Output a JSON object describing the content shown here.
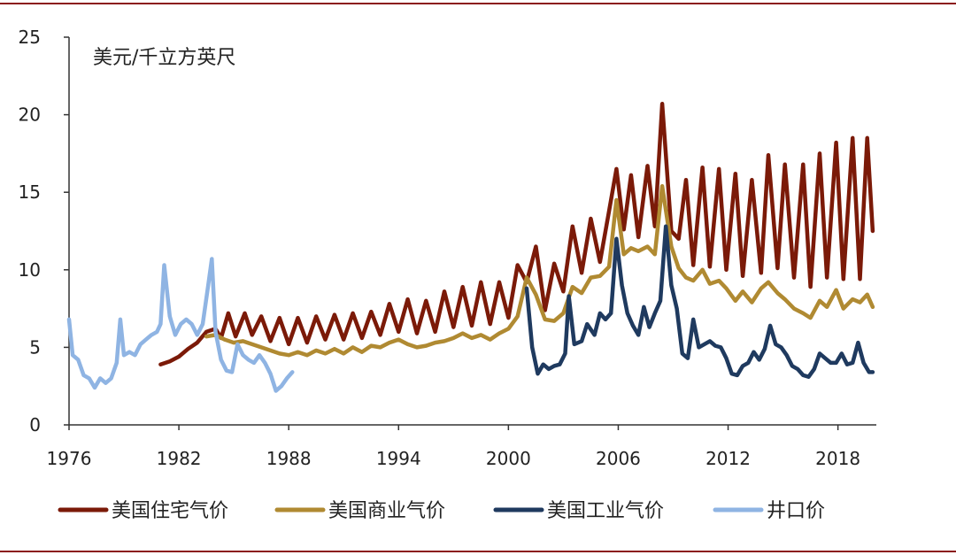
{
  "chart_data": {
    "type": "line",
    "unit_label": "美元/千立方英尺",
    "ylim": [
      0,
      25
    ],
    "xlim": [
      1976,
      2020
    ],
    "y_ticks": [
      0,
      5,
      10,
      15,
      20,
      25
    ],
    "x_ticks": [
      1976,
      1982,
      1988,
      1994,
      2000,
      2006,
      2012,
      2018
    ],
    "legend_position": "bottom",
    "series": [
      {
        "name": "美国住宅气价",
        "color": "#7b1a08",
        "points": [
          [
            1981.0,
            3.9
          ],
          [
            1981.5,
            4.1
          ],
          [
            1982.0,
            4.4
          ],
          [
            1982.5,
            4.9
          ],
          [
            1983.0,
            5.3
          ],
          [
            1983.5,
            6.0
          ],
          [
            1984.0,
            6.2
          ],
          [
            1984.3,
            5.6
          ],
          [
            1984.7,
            7.2
          ],
          [
            1985.1,
            5.7
          ],
          [
            1985.6,
            7.2
          ],
          [
            1986.0,
            5.8
          ],
          [
            1986.5,
            7.0
          ],
          [
            1987.0,
            5.4
          ],
          [
            1987.5,
            6.9
          ],
          [
            1988.0,
            5.2
          ],
          [
            1988.5,
            6.9
          ],
          [
            1989.0,
            5.3
          ],
          [
            1989.5,
            7.0
          ],
          [
            1990.0,
            5.5
          ],
          [
            1990.5,
            7.1
          ],
          [
            1991.0,
            5.5
          ],
          [
            1991.5,
            7.2
          ],
          [
            1992.0,
            5.6
          ],
          [
            1992.5,
            7.3
          ],
          [
            1993.0,
            5.8
          ],
          [
            1993.5,
            7.8
          ],
          [
            1994.0,
            6.0
          ],
          [
            1994.5,
            8.1
          ],
          [
            1995.0,
            5.9
          ],
          [
            1995.5,
            8.0
          ],
          [
            1996.0,
            6.0
          ],
          [
            1996.5,
            8.6
          ],
          [
            1997.0,
            6.3
          ],
          [
            1997.5,
            8.9
          ],
          [
            1998.0,
            6.4
          ],
          [
            1998.5,
            9.2
          ],
          [
            1999.0,
            6.5
          ],
          [
            1999.5,
            9.2
          ],
          [
            2000.0,
            6.9
          ],
          [
            2000.5,
            10.3
          ],
          [
            2001.0,
            9.2
          ],
          [
            2001.5,
            11.5
          ],
          [
            2002.0,
            7.4
          ],
          [
            2002.5,
            10.4
          ],
          [
            2003.0,
            8.6
          ],
          [
            2003.5,
            12.8
          ],
          [
            2004.0,
            9.8
          ],
          [
            2004.5,
            13.3
          ],
          [
            2005.0,
            10.5
          ],
          [
            2005.5,
            13.8
          ],
          [
            2005.9,
            16.5
          ],
          [
            2006.3,
            12.6
          ],
          [
            2006.7,
            16.1
          ],
          [
            2007.1,
            12.1
          ],
          [
            2007.6,
            16.7
          ],
          [
            2008.0,
            12.8
          ],
          [
            2008.4,
            20.7
          ],
          [
            2008.9,
            12.5
          ],
          [
            2009.3,
            12.0
          ],
          [
            2009.7,
            15.8
          ],
          [
            2010.1,
            10.3
          ],
          [
            2010.6,
            16.6
          ],
          [
            2011.0,
            10.2
          ],
          [
            2011.5,
            16.5
          ],
          [
            2011.9,
            10.0
          ],
          [
            2012.4,
            16.2
          ],
          [
            2012.8,
            9.6
          ],
          [
            2013.3,
            15.8
          ],
          [
            2013.8,
            9.8
          ],
          [
            2014.2,
            17.4
          ],
          [
            2014.7,
            10.1
          ],
          [
            2015.1,
            16.8
          ],
          [
            2015.6,
            9.5
          ],
          [
            2016.1,
            16.8
          ],
          [
            2016.5,
            8.9
          ],
          [
            2017.0,
            17.5
          ],
          [
            2017.4,
            9.5
          ],
          [
            2017.9,
            18.2
          ],
          [
            2018.3,
            9.4
          ],
          [
            2018.8,
            18.5
          ],
          [
            2019.2,
            9.4
          ],
          [
            2019.6,
            18.5
          ],
          [
            2019.9,
            12.5
          ]
        ]
      },
      {
        "name": "美国商业气价",
        "color": "#b08a32",
        "points": [
          [
            1983.5,
            5.7
          ],
          [
            1984.0,
            5.8
          ],
          [
            1984.5,
            5.5
          ],
          [
            1985.0,
            5.3
          ],
          [
            1985.5,
            5.4
          ],
          [
            1986.0,
            5.2
          ],
          [
            1986.5,
            5.0
          ],
          [
            1987.0,
            4.8
          ],
          [
            1987.5,
            4.6
          ],
          [
            1988.0,
            4.5
          ],
          [
            1988.5,
            4.7
          ],
          [
            1989.0,
            4.5
          ],
          [
            1989.5,
            4.8
          ],
          [
            1990.0,
            4.6
          ],
          [
            1990.5,
            4.9
          ],
          [
            1991.0,
            4.6
          ],
          [
            1991.5,
            5.0
          ],
          [
            1992.0,
            4.7
          ],
          [
            1992.5,
            5.1
          ],
          [
            1993.0,
            5.0
          ],
          [
            1993.5,
            5.3
          ],
          [
            1994.0,
            5.5
          ],
          [
            1994.5,
            5.2
          ],
          [
            1995.0,
            5.0
          ],
          [
            1995.5,
            5.1
          ],
          [
            1996.0,
            5.3
          ],
          [
            1996.5,
            5.4
          ],
          [
            1997.0,
            5.6
          ],
          [
            1997.5,
            5.9
          ],
          [
            1998.0,
            5.6
          ],
          [
            1998.5,
            5.8
          ],
          [
            1999.0,
            5.5
          ],
          [
            1999.5,
            5.9
          ],
          [
            2000.0,
            6.2
          ],
          [
            2000.5,
            7.0
          ],
          [
            2001.0,
            9.5
          ],
          [
            2001.5,
            8.4
          ],
          [
            2002.0,
            6.8
          ],
          [
            2002.5,
            6.7
          ],
          [
            2003.0,
            7.2
          ],
          [
            2003.5,
            8.9
          ],
          [
            2004.0,
            8.5
          ],
          [
            2004.5,
            9.5
          ],
          [
            2005.0,
            9.6
          ],
          [
            2005.5,
            10.2
          ],
          [
            2005.9,
            14.5
          ],
          [
            2006.3,
            11.0
          ],
          [
            2006.7,
            11.4
          ],
          [
            2007.1,
            11.2
          ],
          [
            2007.6,
            11.5
          ],
          [
            2008.0,
            11.0
          ],
          [
            2008.4,
            15.4
          ],
          [
            2008.9,
            11.5
          ],
          [
            2009.3,
            10.1
          ],
          [
            2009.7,
            9.5
          ],
          [
            2010.1,
            9.3
          ],
          [
            2010.6,
            10.0
          ],
          [
            2011.0,
            9.1
          ],
          [
            2011.5,
            9.3
          ],
          [
            2011.9,
            8.8
          ],
          [
            2012.4,
            8.0
          ],
          [
            2012.8,
            8.6
          ],
          [
            2013.3,
            7.9
          ],
          [
            2013.8,
            8.8
          ],
          [
            2014.2,
            9.2
          ],
          [
            2014.7,
            8.5
          ],
          [
            2015.1,
            8.1
          ],
          [
            2015.6,
            7.5
          ],
          [
            2016.1,
            7.2
          ],
          [
            2016.5,
            6.9
          ],
          [
            2017.0,
            8.0
          ],
          [
            2017.4,
            7.6
          ],
          [
            2017.9,
            8.7
          ],
          [
            2018.3,
            7.5
          ],
          [
            2018.8,
            8.1
          ],
          [
            2019.2,
            7.9
          ],
          [
            2019.6,
            8.4
          ],
          [
            2019.9,
            7.6
          ]
        ]
      },
      {
        "name": "美国工业气价",
        "color": "#1f3a5f",
        "points": [
          [
            2001.0,
            8.8
          ],
          [
            2001.3,
            5.0
          ],
          [
            2001.6,
            3.3
          ],
          [
            2001.9,
            3.9
          ],
          [
            2002.2,
            3.6
          ],
          [
            2002.5,
            3.8
          ],
          [
            2002.8,
            3.9
          ],
          [
            2003.1,
            4.6
          ],
          [
            2003.3,
            8.3
          ],
          [
            2003.6,
            5.2
          ],
          [
            2004.0,
            5.4
          ],
          [
            2004.3,
            6.5
          ],
          [
            2004.7,
            5.8
          ],
          [
            2005.0,
            7.2
          ],
          [
            2005.3,
            6.8
          ],
          [
            2005.6,
            7.2
          ],
          [
            2005.9,
            12.0
          ],
          [
            2006.2,
            9.0
          ],
          [
            2006.5,
            7.2
          ],
          [
            2006.8,
            6.4
          ],
          [
            2007.1,
            5.8
          ],
          [
            2007.4,
            7.6
          ],
          [
            2007.7,
            6.3
          ],
          [
            2008.0,
            7.2
          ],
          [
            2008.3,
            8.0
          ],
          [
            2008.6,
            12.8
          ],
          [
            2008.9,
            9.0
          ],
          [
            2009.2,
            7.5
          ],
          [
            2009.5,
            4.6
          ],
          [
            2009.8,
            4.3
          ],
          [
            2010.1,
            6.8
          ],
          [
            2010.4,
            5.0
          ],
          [
            2010.7,
            5.2
          ],
          [
            2011.0,
            5.4
          ],
          [
            2011.3,
            5.1
          ],
          [
            2011.6,
            5.0
          ],
          [
            2011.9,
            4.3
          ],
          [
            2012.2,
            3.3
          ],
          [
            2012.5,
            3.2
          ],
          [
            2012.8,
            3.8
          ],
          [
            2013.1,
            4.0
          ],
          [
            2013.4,
            4.7
          ],
          [
            2013.7,
            4.2
          ],
          [
            2014.0,
            4.9
          ],
          [
            2014.3,
            6.4
          ],
          [
            2014.6,
            5.2
          ],
          [
            2014.9,
            5.0
          ],
          [
            2015.2,
            4.5
          ],
          [
            2015.5,
            3.8
          ],
          [
            2015.8,
            3.6
          ],
          [
            2016.1,
            3.2
          ],
          [
            2016.4,
            3.1
          ],
          [
            2016.7,
            3.6
          ],
          [
            2017.0,
            4.6
          ],
          [
            2017.3,
            4.3
          ],
          [
            2017.6,
            4.0
          ],
          [
            2017.9,
            4.0
          ],
          [
            2018.2,
            4.6
          ],
          [
            2018.5,
            3.9
          ],
          [
            2018.8,
            4.0
          ],
          [
            2019.1,
            5.3
          ],
          [
            2019.4,
            4.0
          ],
          [
            2019.7,
            3.4
          ],
          [
            2019.9,
            3.4
          ]
        ]
      },
      {
        "name": "井口价",
        "color": "#8fb4e3",
        "points": [
          [
            1976.0,
            6.8
          ],
          [
            1976.2,
            4.5
          ],
          [
            1976.5,
            4.2
          ],
          [
            1976.8,
            3.2
          ],
          [
            1977.1,
            3.0
          ],
          [
            1977.4,
            2.4
          ],
          [
            1977.7,
            3.0
          ],
          [
            1978.0,
            2.7
          ],
          [
            1978.3,
            3.0
          ],
          [
            1978.6,
            4.0
          ],
          [
            1978.8,
            6.8
          ],
          [
            1979.0,
            4.5
          ],
          [
            1979.3,
            4.7
          ],
          [
            1979.6,
            4.5
          ],
          [
            1979.9,
            5.2
          ],
          [
            1980.2,
            5.5
          ],
          [
            1980.5,
            5.8
          ],
          [
            1980.8,
            6.0
          ],
          [
            1981.0,
            6.5
          ],
          [
            1981.2,
            10.3
          ],
          [
            1981.5,
            7.0
          ],
          [
            1981.8,
            5.8
          ],
          [
            1982.1,
            6.5
          ],
          [
            1982.4,
            6.8
          ],
          [
            1982.7,
            6.5
          ],
          [
            1983.0,
            5.8
          ],
          [
            1983.3,
            6.5
          ],
          [
            1983.6,
            9.0
          ],
          [
            1983.8,
            10.7
          ],
          [
            1984.0,
            6.0
          ],
          [
            1984.3,
            4.2
          ],
          [
            1984.6,
            3.5
          ],
          [
            1984.9,
            3.4
          ],
          [
            1985.2,
            5.2
          ],
          [
            1985.5,
            4.5
          ],
          [
            1985.8,
            4.2
          ],
          [
            1986.1,
            4.0
          ],
          [
            1986.4,
            4.5
          ],
          [
            1986.7,
            4.0
          ],
          [
            1987.0,
            3.3
          ],
          [
            1987.3,
            2.2
          ],
          [
            1987.6,
            2.5
          ],
          [
            1987.9,
            3.0
          ],
          [
            1988.2,
            3.4
          ]
        ]
      }
    ]
  }
}
